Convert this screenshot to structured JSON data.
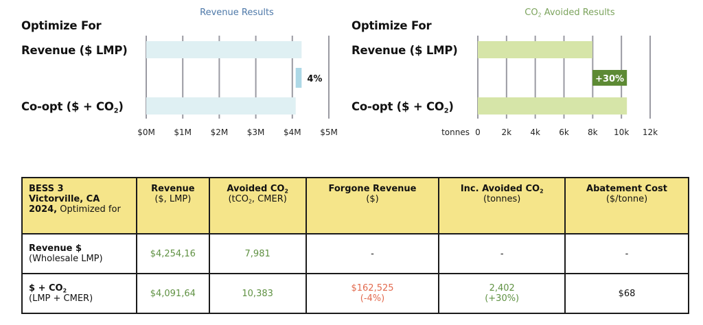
{
  "charts_header": {
    "left_section_label": "Optimize For",
    "right_section_label": "Optimize For",
    "row_labels": [
      "Revenue ($ LMP)",
      "Co-opt ($ + CO",
      "2",
      ")"
    ]
  },
  "chart_data": [
    {
      "type": "bar",
      "orientation": "horizontal",
      "title": "Revenue Results",
      "categories": [
        "Revenue ($ LMP)",
        "Co-opt ($ + CO2)"
      ],
      "values": [
        4.254,
        4.092
      ],
      "unit": "$M",
      "xlim": [
        0,
        5
      ],
      "xticks": [
        "$0M",
        "$1M",
        "$2M",
        "$3M",
        "$4M",
        "$5M"
      ],
      "xlabel": "",
      "grid": true,
      "annotation": {
        "label": "4%",
        "from": 4.092,
        "to": 4.254,
        "color": "#add8e6"
      },
      "bar_color": "#dff0f3",
      "title_color": "#4d78a8"
    },
    {
      "type": "bar",
      "orientation": "horizontal",
      "title": "CO2 Avoided Results",
      "title_parts": [
        "CO",
        "2",
        " Avoided Results"
      ],
      "categories": [
        "Revenue ($ LMP)",
        "Co-opt ($ + CO2)"
      ],
      "values": [
        7.981,
        10.383
      ],
      "unit": "k tonnes",
      "xlim": [
        0,
        12
      ],
      "xticks": [
        "0",
        "2k",
        "4k",
        "6k",
        "8k",
        "10k",
        "12k"
      ],
      "xlabel": "tonnes",
      "grid": true,
      "annotation": {
        "label": "+30%",
        "from": 7.981,
        "to": 10.383,
        "color": "#5d8a34"
      },
      "bar_color": "#d6e5a8",
      "title_color": "#7ba35c"
    }
  ],
  "table": {
    "header": {
      "first": {
        "line1": "BESS 3",
        "line2": "Victorville, CA",
        "line3_bold": "2024,",
        "line3_rest": " Optimized for"
      },
      "columns": [
        {
          "title": "Revenue",
          "sub": "($, LMP)"
        },
        {
          "title": "Avoided CO",
          "title_sub": "2",
          "sub": "(tCO",
          "sub_sub": "2",
          "sub_rest": ", CMER)"
        },
        {
          "title": "Forgone Revenue",
          "sub": "($)"
        },
        {
          "title": "Inc. Avoided CO",
          "title_sub": "2",
          "sub": "(tonnes)"
        },
        {
          "title": "Abatement Cost",
          "sub": "($/tonne)"
        }
      ]
    },
    "rows": [
      {
        "label_bold": "Revenue $",
        "label_sub": "(Wholesale LMP)",
        "cells": [
          "$4,254,16",
          "7,981",
          "-",
          "-",
          "-"
        ]
      },
      {
        "label_bold": "$ + CO",
        "label_bold_sub": "2",
        "label_sub": "(LMP + CMER)",
        "cells": [
          "$4,091,64",
          "10,383",
          "$162,525",
          "2,402",
          "$68"
        ],
        "cells_line2": [
          "",
          "",
          "(-4%)",
          "(+30%)",
          ""
        ]
      }
    ],
    "colors": {
      "positive": "#5f9142",
      "negative": "#e26a4e",
      "header_bg": "#f5e58a"
    }
  }
}
